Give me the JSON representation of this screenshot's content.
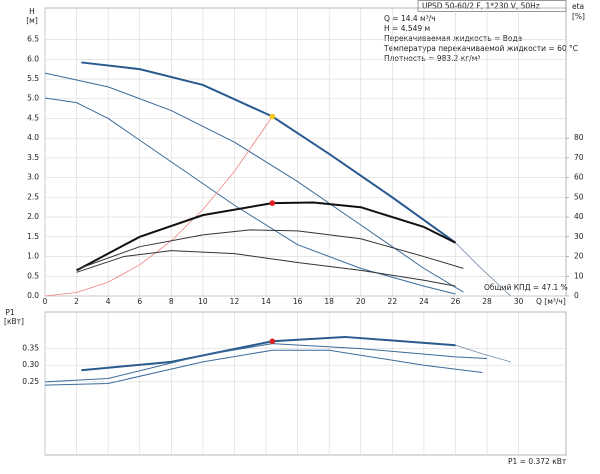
{
  "header": {
    "title": "UPSD 50-60/2 F, 1*230 V, 50Hz",
    "lines": [
      "Q = 14.4 м³/ч",
      "H = 4.549 м",
      "Перекачиваемая жидкость = Вода",
      "Температура перекачиваемой жидкости = 60 °C",
      "Плотность = 983.2 кг/м³"
    ]
  },
  "chart_data": [
    {
      "type": "line",
      "y_label": "H",
      "y_unit": "[м]",
      "y2_label": "eta",
      "y2_unit": "[%]",
      "x_label": "Q [м³/ч]",
      "annotation": "Общий КПД = 47.1 %",
      "grid": true,
      "xlim": [
        0,
        33
      ],
      "ylim": [
        0,
        7.3
      ],
      "y2lim": [
        0,
        146
      ],
      "xticks": [
        0,
        2,
        4,
        6,
        8,
        10,
        12,
        14,
        16,
        18,
        20,
        22,
        24,
        26,
        28,
        30
      ],
      "yticks": [
        {
          "value": 0,
          "label": "0.0"
        },
        0.5,
        {
          "value": 1,
          "label": "1.0"
        },
        1.5,
        {
          "value": 2,
          "label": "2.0"
        },
        2.5,
        {
          "value": 3,
          "label": "3.0"
        },
        3.5,
        {
          "value": 4,
          "label": "4.0"
        },
        4.5,
        {
          "value": 5,
          "label": "5.0"
        },
        5.5,
        {
          "value": 6,
          "label": "6.0"
        },
        6.5
      ],
      "y2ticks": [
        0,
        10,
        20,
        30,
        40,
        50,
        60,
        70,
        80
      ],
      "series": [
        {
          "x": [
            2.3,
            6,
            10,
            14.4,
            18,
            22,
            26
          ],
          "values": [
            5.92,
            5.75,
            5.35,
            4.55,
            3.6,
            2.5,
            1.35
          ],
          "color": "#2a5b8f",
          "width": 2
        },
        {
          "x": [
            26,
            27.5,
            29.5
          ],
          "values": [
            1.35,
            0.75,
            0
          ],
          "color": "#6f8aa8",
          "width": 0.8
        },
        {
          "x": [
            0,
            4,
            8,
            12,
            16,
            20,
            24,
            26.5
          ],
          "values": [
            5.65,
            5.3,
            4.7,
            3.9,
            2.9,
            1.8,
            0.7,
            0.1
          ],
          "color": "#3c6b9a",
          "width": 1
        },
        {
          "x": [
            0,
            2,
            4,
            8,
            12,
            16,
            20,
            24,
            26
          ],
          "values": [
            5.02,
            4.9,
            4.5,
            3.4,
            2.3,
            1.3,
            0.7,
            0.25,
            0.05
          ],
          "color": "#3c6b9a",
          "width": 1
        },
        {
          "x": [
            0,
            2,
            4,
            6,
            8,
            10,
            12,
            14.4
          ],
          "values": [
            0,
            0.088,
            0.351,
            0.79,
            1.4,
            2.19,
            3.16,
            4.549
          ],
          "color": "#f08080",
          "width": 0.8
        },
        {
          "x": [
            2,
            6,
            10,
            14.4,
            17,
            20,
            24,
            26
          ],
          "values": [
            13,
            30,
            41,
            47.1,
            47.4,
            45,
            35,
            27
          ],
          "color": "#111111",
          "width": 2,
          "axis": "y2"
        },
        {
          "x": [
            2,
            6,
            10,
            13,
            16,
            20,
            24,
            26.5
          ],
          "values": [
            13.5,
            25,
            31,
            33.5,
            33,
            29,
            20,
            14
          ],
          "color": "#333333",
          "width": 1,
          "axis": "y2"
        },
        {
          "x": [
            2,
            5,
            8,
            12,
            16,
            20,
            24,
            26
          ],
          "values": [
            12,
            20,
            23,
            21.5,
            17,
            13,
            8,
            5
          ],
          "color": "#333333",
          "width": 1,
          "axis": "y2"
        },
        {
          "x": [
            14.4
          ],
          "values": [
            4.549
          ],
          "color": "#f5c518",
          "marker": true
        },
        {
          "x": [
            14.4
          ],
          "values": [
            47.1
          ],
          "color": "#e02020",
          "marker": true,
          "axis": "y2"
        }
      ]
    },
    {
      "type": "line",
      "y_label": "P1",
      "y_unit": "[кВт]",
      "annotation": "P1 = 0.372 кВт",
      "grid": true,
      "xlim": [
        0,
        33
      ],
      "ylim": [
        0.03,
        0.46
      ],
      "xticks": [
        0,
        2,
        4,
        6,
        8,
        10,
        12,
        14,
        16,
        18,
        20,
        22,
        24,
        26,
        28,
        30
      ],
      "yticks": [
        0.25,
        {
          "value": 0.3,
          "label": "0.30"
        },
        0.35
      ],
      "series": [
        {
          "x": [
            2.3,
            8,
            14.4,
            19,
            26
          ],
          "values": [
            0.285,
            0.31,
            0.372,
            0.385,
            0.36
          ],
          "color": "#2a5b8f",
          "width": 2
        },
        {
          "x": [
            26,
            28,
            29.5
          ],
          "values": [
            0.36,
            0.33,
            0.31
          ],
          "color": "#6f8aa8",
          "width": 0.8
        },
        {
          "x": [
            0,
            4,
            10,
            14.4,
            20,
            26,
            28
          ],
          "values": [
            0.25,
            0.26,
            0.33,
            0.365,
            0.35,
            0.325,
            0.32
          ],
          "color": "#3c6b9a",
          "width": 1
        },
        {
          "x": [
            0,
            4,
            10,
            14.4,
            18,
            24,
            27.7
          ],
          "values": [
            0.24,
            0.245,
            0.31,
            0.345,
            0.345,
            0.3,
            0.278
          ],
          "color": "#3c6b9a",
          "width": 1
        },
        {
          "x": [
            14.4
          ],
          "values": [
            0.372
          ],
          "color": "#e02020",
          "marker": true
        }
      ]
    }
  ]
}
